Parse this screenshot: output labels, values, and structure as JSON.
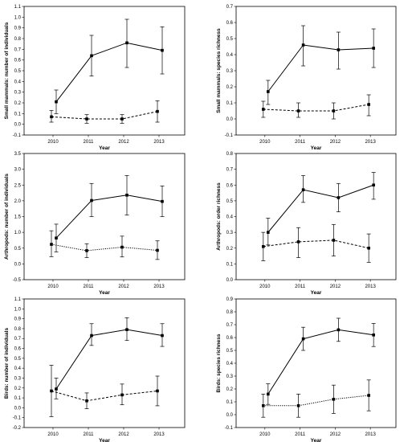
{
  "chart_data": [
    {
      "type": "line",
      "xlabel": "Year",
      "ylabel": "Small mammals: number of individuals",
      "x": [
        "2010",
        "2011",
        "2012",
        "2013"
      ],
      "ylim": [
        -0.1,
        1.1
      ],
      "yticks": [
        "-0.1",
        "0.0",
        "0.1",
        "0.2",
        "0.3",
        "0.4",
        "0.5",
        "0.6",
        "0.7",
        "0.8",
        "0.9",
        "1.0",
        "1.1"
      ],
      "series": [
        {
          "style": "solid",
          "values": [
            0.21,
            0.64,
            0.76,
            0.69
          ],
          "lower": [
            0.1,
            0.45,
            0.53,
            0.47
          ],
          "upper": [
            0.32,
            0.83,
            0.98,
            0.91
          ]
        },
        {
          "style": "dashed",
          "values": [
            0.07,
            0.05,
            0.05,
            0.12
          ],
          "lower": [
            0.02,
            0.01,
            0.01,
            0.02
          ],
          "upper": [
            0.13,
            0.09,
            0.09,
            0.22
          ]
        }
      ]
    },
    {
      "type": "line",
      "xlabel": "Year",
      "ylabel": "Small mammals: species richness",
      "x": [
        "2010",
        "2011",
        "2012",
        "2013"
      ],
      "ylim": [
        -0.1,
        0.7
      ],
      "yticks": [
        "-0.1",
        "0.0",
        "0.1",
        "0.2",
        "0.3",
        "0.4",
        "0.5",
        "0.6",
        "0.7"
      ],
      "series": [
        {
          "style": "solid",
          "values": [
            0.17,
            0.46,
            0.43,
            0.44
          ],
          "lower": [
            0.09,
            0.33,
            0.31,
            0.32
          ],
          "upper": [
            0.24,
            0.58,
            0.54,
            0.56
          ]
        },
        {
          "style": "dashed",
          "values": [
            0.06,
            0.05,
            0.05,
            0.09
          ],
          "lower": [
            0.01,
            0.01,
            0.0,
            0.02
          ],
          "upper": [
            0.11,
            0.1,
            0.1,
            0.15
          ]
        }
      ]
    },
    {
      "type": "line",
      "xlabel": "Year",
      "ylabel": "Arthropods: number of individuals",
      "x": [
        "2010",
        "2011",
        "2012",
        "2013"
      ],
      "ylim": [
        -0.5,
        3.5
      ],
      "yticks": [
        "-0.5",
        "0.0",
        "0.5",
        "1.0",
        "1.5",
        "2.0",
        "2.5",
        "3.0",
        "3.5"
      ],
      "series": [
        {
          "style": "solid",
          "values": [
            0.82,
            2.01,
            2.18,
            1.98
          ],
          "lower": [
            0.38,
            1.5,
            1.55,
            1.5
          ],
          "upper": [
            1.26,
            2.55,
            2.8,
            2.47
          ]
        },
        {
          "style": "dotted",
          "values": [
            0.62,
            0.42,
            0.53,
            0.43
          ],
          "lower": [
            0.23,
            0.2,
            0.22,
            0.14
          ],
          "upper": [
            1.05,
            0.64,
            0.88,
            0.73
          ]
        }
      ]
    },
    {
      "type": "line",
      "xlabel": "Year",
      "ylabel": "Arthropods: order richness",
      "x": [
        "2010",
        "2011",
        "2012",
        "2013"
      ],
      "ylim": [
        0.0,
        0.8
      ],
      "yticks": [
        "0.0",
        "0.1",
        "0.2",
        "0.3",
        "0.4",
        "0.5",
        "0.6",
        "0.7",
        "0.8"
      ],
      "series": [
        {
          "style": "solid",
          "values": [
            0.3,
            0.57,
            0.52,
            0.6
          ],
          "lower": [
            0.22,
            0.49,
            0.43,
            0.51
          ],
          "upper": [
            0.39,
            0.66,
            0.61,
            0.68
          ]
        },
        {
          "style": "dashed",
          "values": [
            0.21,
            0.24,
            0.25,
            0.2
          ],
          "lower": [
            0.12,
            0.14,
            0.15,
            0.11
          ],
          "upper": [
            0.3,
            0.33,
            0.35,
            0.29
          ]
        }
      ]
    },
    {
      "type": "line",
      "xlabel": "Year",
      "ylabel": "Birds: number of individuals",
      "x": [
        "2010",
        "2011",
        "2012",
        "2013"
      ],
      "ylim": [
        -0.2,
        1.1
      ],
      "yticks": [
        "-0.2",
        "-0.1",
        "0.0",
        "0.1",
        "0.2",
        "0.3",
        "0.4",
        "0.5",
        "0.6",
        "0.7",
        "0.8",
        "0.9",
        "1.0",
        "1.1"
      ],
      "series": [
        {
          "style": "solid",
          "values": [
            0.19,
            0.73,
            0.79,
            0.73
          ],
          "lower": [
            0.09,
            0.63,
            0.68,
            0.62
          ],
          "upper": [
            0.3,
            0.85,
            0.91,
            0.85
          ]
        },
        {
          "style": "dashed",
          "values": [
            0.17,
            0.07,
            0.13,
            0.17
          ],
          "lower": [
            -0.09,
            -0.01,
            0.03,
            0.02
          ],
          "upper": [
            0.43,
            0.15,
            0.24,
            0.32
          ]
        }
      ]
    },
    {
      "type": "line",
      "xlabel": "Year",
      "ylabel": "Birds: species richness",
      "x": [
        "2010",
        "2011",
        "2012",
        "2013"
      ],
      "ylim": [
        -0.1,
        0.9
      ],
      "yticks": [
        "-0.1",
        "0.0",
        "0.1",
        "0.2",
        "0.3",
        "0.4",
        "0.5",
        "0.6",
        "0.7",
        "0.8",
        "0.9"
      ],
      "series": [
        {
          "style": "solid",
          "values": [
            0.16,
            0.59,
            0.66,
            0.62
          ],
          "lower": [
            0.08,
            0.5,
            0.57,
            0.53
          ],
          "upper": [
            0.24,
            0.68,
            0.75,
            0.71
          ]
        },
        {
          "style": "dotted",
          "values": [
            0.07,
            0.07,
            0.12,
            0.15
          ],
          "lower": [
            -0.02,
            -0.02,
            0.01,
            0.03
          ],
          "upper": [
            0.16,
            0.16,
            0.23,
            0.27
          ]
        }
      ]
    }
  ]
}
